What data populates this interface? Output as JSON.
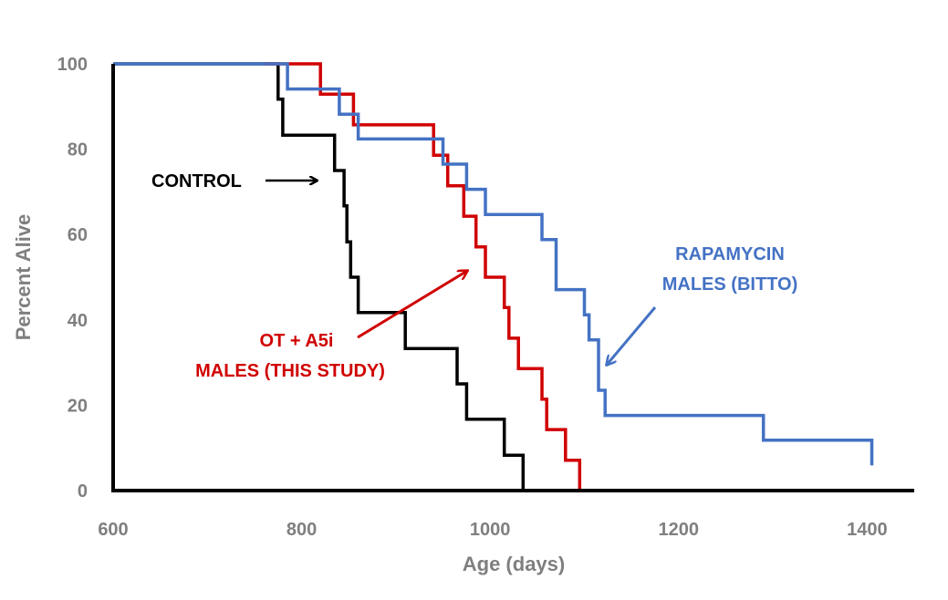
{
  "chart_data": {
    "type": "line",
    "step": true,
    "xlabel": "Age (days)",
    "ylabel": "Percent Alive",
    "xlim": [
      600,
      1450
    ],
    "ylim": [
      0,
      100
    ],
    "xticks": [
      600,
      800,
      1000,
      1200,
      1400
    ],
    "yticks": [
      0,
      20,
      40,
      60,
      80,
      100
    ],
    "grid": false,
    "series": [
      {
        "name": "CONTROL",
        "color": "#000000",
        "x": [
          600,
          770,
          775,
          780,
          830,
          835,
          845,
          848,
          852,
          860,
          910,
          965,
          975,
          995,
          1015,
          1035
        ],
        "y": [
          100,
          100,
          91.7,
          83.3,
          83.3,
          75,
          66.7,
          58.3,
          50,
          41.7,
          33.3,
          25,
          16.7,
          16.7,
          8.3,
          0
        ]
      },
      {
        "name": "OT + A5i MALES (THIS STUDY)",
        "color": "#d00000",
        "x": [
          760,
          795,
          820,
          845,
          855,
          940,
          955,
          965,
          972,
          985,
          995,
          1005,
          1015,
          1020,
          1030,
          1045,
          1055,
          1060,
          1080,
          1095
        ],
        "y": [
          100,
          100,
          92.9,
          92.9,
          85.7,
          78.6,
          71.4,
          71.4,
          64.3,
          57.1,
          50,
          50,
          42.9,
          35.7,
          28.6,
          28.6,
          21.4,
          14.3,
          7.1,
          0
        ]
      },
      {
        "name": "RAPAMYCIN MALES (BITTO)",
        "color": "#4472c4",
        "x": [
          600,
          760,
          785,
          815,
          840,
          860,
          940,
          950,
          965,
          975,
          995,
          1055,
          1070,
          1100,
          1105,
          1115,
          1122,
          1265,
          1290,
          1405
        ],
        "y": [
          100,
          100,
          94.1,
          94.1,
          88.2,
          82.4,
          82.4,
          76.5,
          76.5,
          70.6,
          64.7,
          58.8,
          47.1,
          41.2,
          35.3,
          23.5,
          17.6,
          17.6,
          11.8,
          5.9
        ]
      }
    ],
    "annotations": [
      {
        "text": "CONTROL",
        "color": "#000000"
      },
      {
        "text": "OT + A5i",
        "color": "#d00000"
      },
      {
        "text": "MALES (THIS STUDY)",
        "color": "#d00000"
      },
      {
        "text": "RAPAMYCIN",
        "color": "#4472c4"
      },
      {
        "text": "MALES (BITTO)",
        "color": "#4472c4"
      }
    ]
  }
}
